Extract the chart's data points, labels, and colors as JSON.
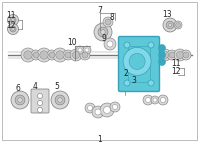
{
  "bg_color": "#ffffff",
  "border_color": "#bbbbbb",
  "part_gray": "#b0b0b0",
  "part_light": "#d8d8d8",
  "part_dark": "#787878",
  "part_mid": "#c0c0c0",
  "highlight": "#5cc8d8",
  "highlight_dark": "#38a0b8",
  "highlight_mid": "#80d8e8",
  "dot_blue": "#38a8c0",
  "text_color": "#222222",
  "line_color": "#888888",
  "figsize": [
    2.0,
    1.47
  ],
  "dpi": 100
}
